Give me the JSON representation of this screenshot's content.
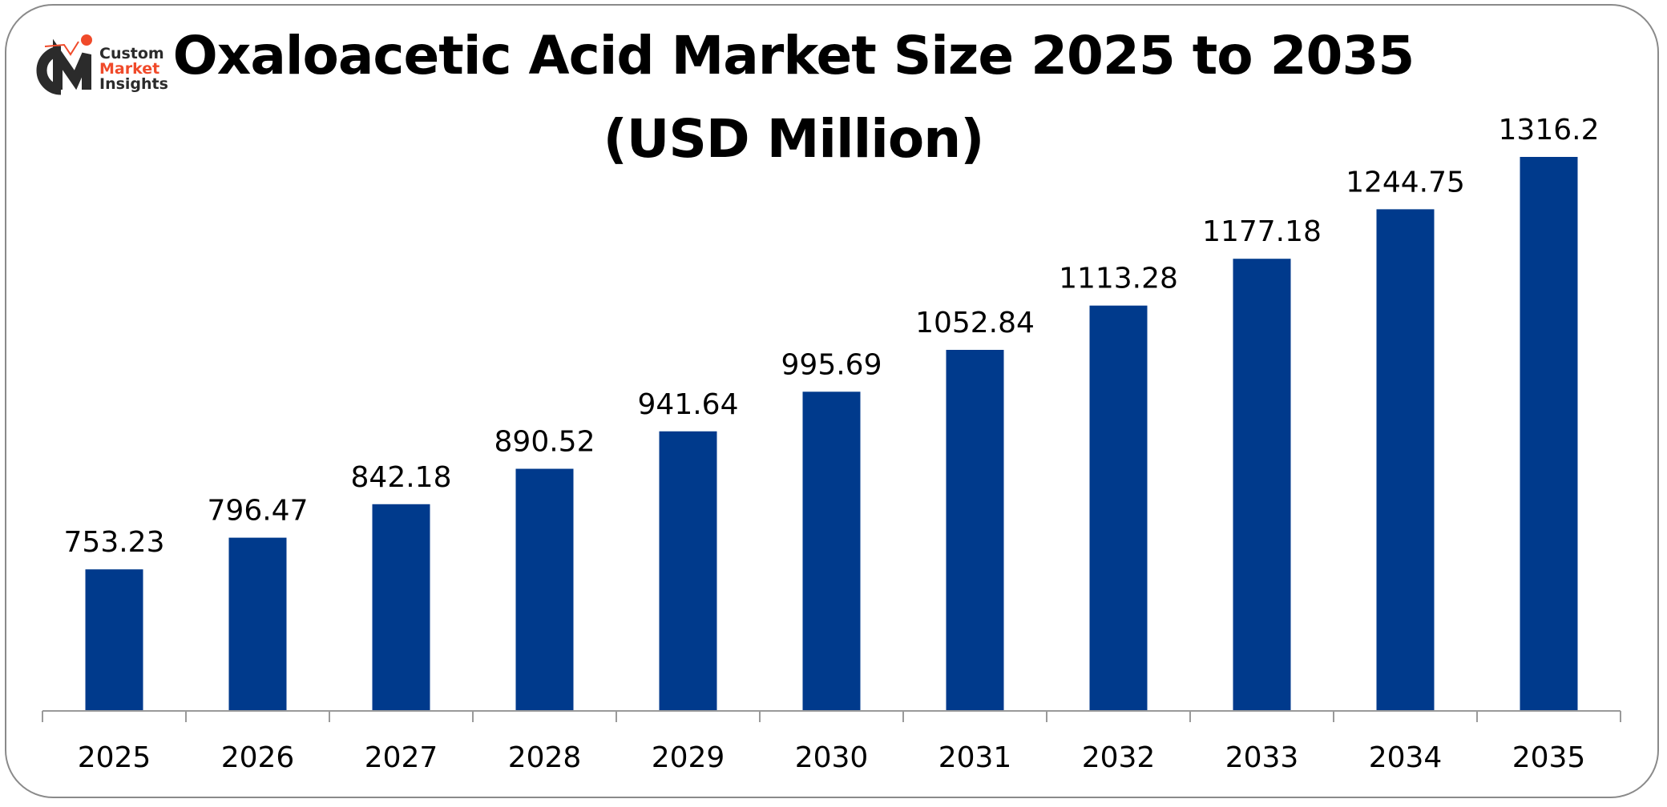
{
  "logo": {
    "line1": "Custom",
    "line2": "Market",
    "line3": "Insights",
    "mark": "CMI"
  },
  "chart_data": {
    "type": "bar",
    "title_line1": "Oxaloacetic Acid Market Size 2025 to 2035",
    "title_line2": "(USD Million)",
    "categories": [
      "2025",
      "2026",
      "2027",
      "2028",
      "2029",
      "2030",
      "2031",
      "2032",
      "2033",
      "2034",
      "2035"
    ],
    "values": [
      753.23,
      796.47,
      842.18,
      890.52,
      941.64,
      995.69,
      1052.84,
      1113.28,
      1177.18,
      1244.75,
      1316.2
    ],
    "data_labels": [
      "753.23",
      "796.47",
      "842.18",
      "890.52",
      "941.64",
      "995.69",
      "1052.84",
      "1113.28",
      "1177.18",
      "1244.75",
      "1316.2"
    ],
    "xlabel": "",
    "ylabel": "",
    "ylim": [
      560,
      1316.2
    ],
    "grid": false,
    "legend": "none",
    "bar_color": "#003a8c"
  }
}
